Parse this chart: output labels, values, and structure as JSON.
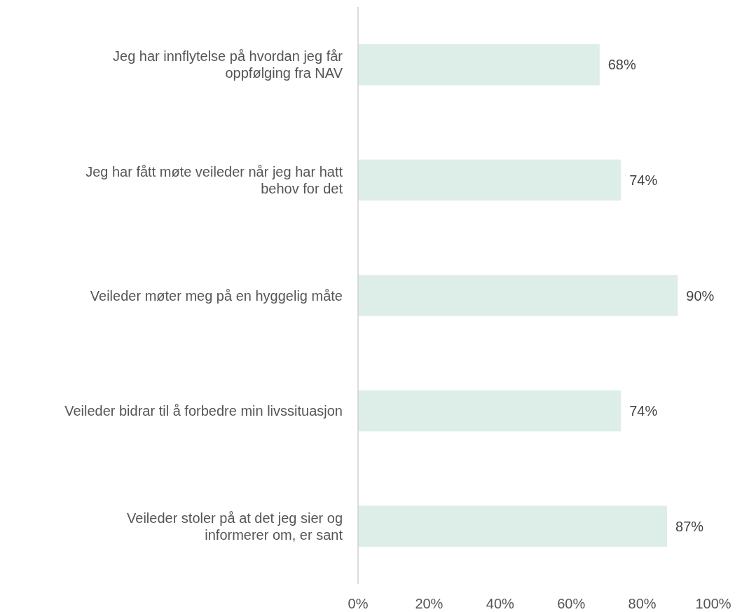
{
  "chart_data": {
    "type": "bar",
    "orientation": "horizontal",
    "categories": [
      "Jeg har innflytelse på hvordan jeg får oppfølging fra NAV",
      "Jeg har fått møte veileder når jeg har hatt behov for det",
      "Veileder møter meg på en hyggelig måte",
      "Veileder bidrar til å forbedre min livssituasjon",
      "Veileder stoler på at det jeg sier og informerer om, er sant"
    ],
    "values": [
      68,
      74,
      90,
      74,
      87
    ],
    "value_labels": [
      "68%",
      "74%",
      "90%",
      "74%",
      "87%"
    ],
    "color": "#ddede7",
    "xlim": [
      0,
      100
    ],
    "xticks": [
      {
        "value": 0,
        "label": "0%"
      },
      {
        "value": 20,
        "label": "20%"
      },
      {
        "value": 40,
        "label": "40%"
      },
      {
        "value": 60,
        "label": "60%"
      },
      {
        "value": 80,
        "label": "80%"
      },
      {
        "value": 100,
        "label": "100%"
      }
    ],
    "grid": false
  }
}
